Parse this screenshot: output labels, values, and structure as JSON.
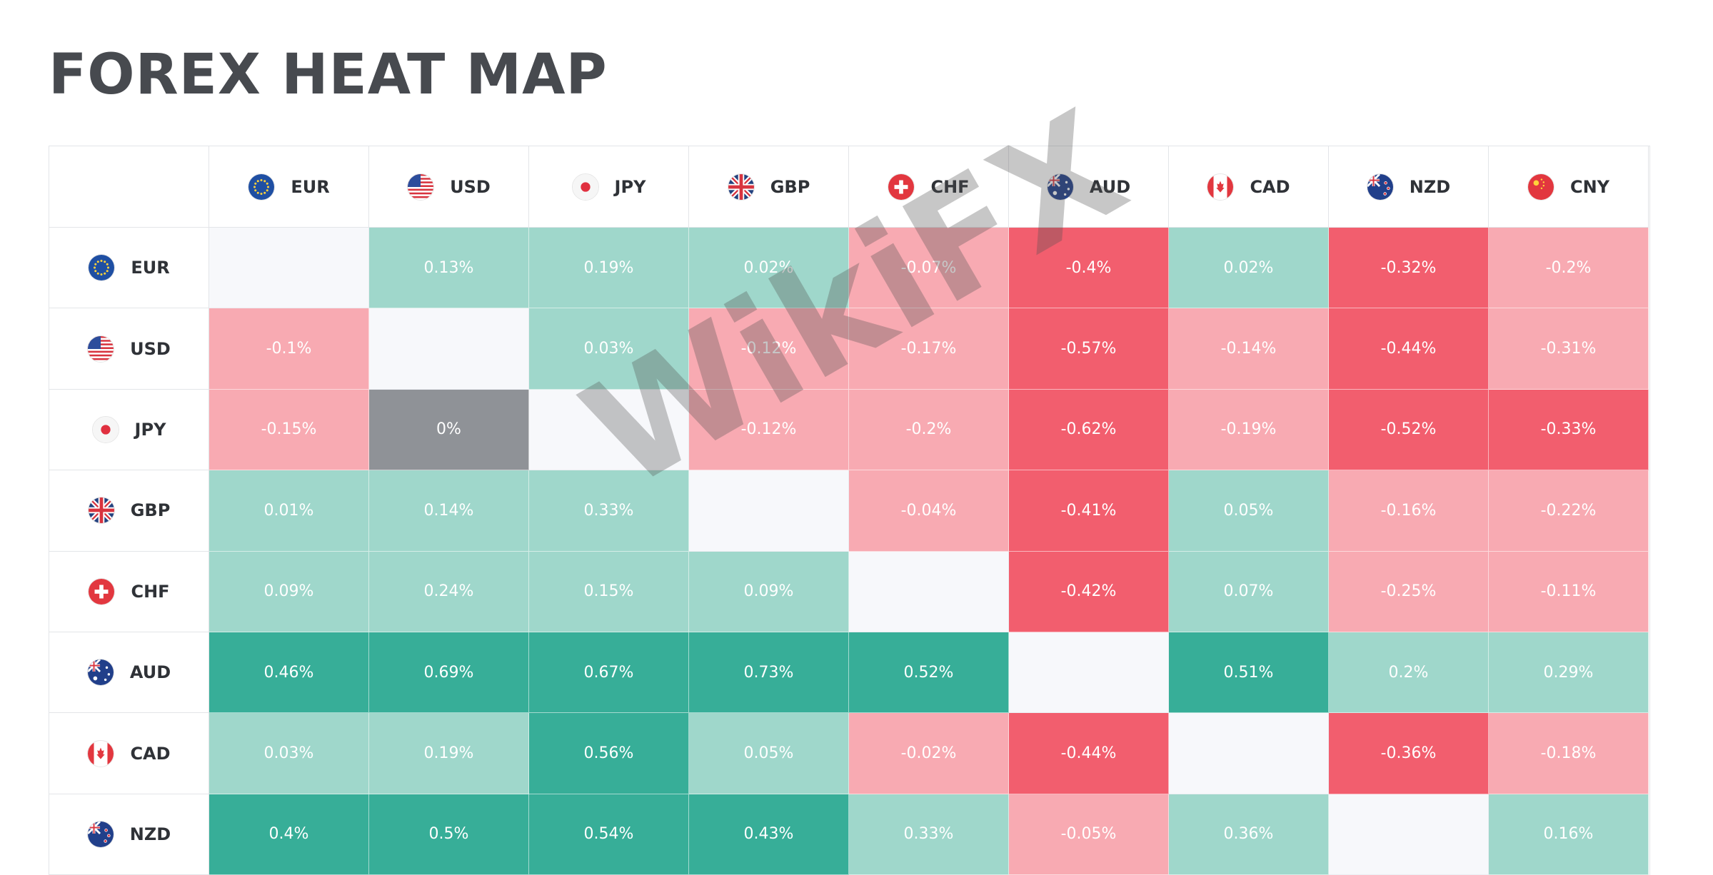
{
  "title": "FOREX HEAT MAP",
  "watermark": "WikiFX",
  "colors": {
    "strong_pos": "#37ae98",
    "weak_pos": "#9fd7cb",
    "weak_neg": "#f8aab2",
    "strong_neg": "#f25e6e",
    "neutral": "#8f9297",
    "self": "#f7f8fb"
  },
  "currencies": [
    {
      "code": "EUR",
      "flag": "eu-flag-icon"
    },
    {
      "code": "USD",
      "flag": "us-flag-icon"
    },
    {
      "code": "JPY",
      "flag": "jp-flag-icon"
    },
    {
      "code": "GBP",
      "flag": "gb-flag-icon"
    },
    {
      "code": "CHF",
      "flag": "ch-flag-icon"
    },
    {
      "code": "AUD",
      "flag": "au-flag-icon"
    },
    {
      "code": "CAD",
      "flag": "ca-flag-icon"
    },
    {
      "code": "NZD",
      "flag": "nz-flag-icon"
    },
    {
      "code": "CNY",
      "flag": "cn-flag-icon"
    }
  ],
  "rows": [
    {
      "code": "EUR",
      "cells": [
        {
          "text": "",
          "tone": "self"
        },
        {
          "text": "0.13%",
          "tone": "weak_pos"
        },
        {
          "text": "0.19%",
          "tone": "weak_pos"
        },
        {
          "text": "0.02%",
          "tone": "weak_pos"
        },
        {
          "text": "-0.07%",
          "tone": "weak_neg"
        },
        {
          "text": "-0.4%",
          "tone": "strong_neg"
        },
        {
          "text": "0.02%",
          "tone": "weak_pos"
        },
        {
          "text": "-0.32%",
          "tone": "strong_neg"
        },
        {
          "text": "-0.2%",
          "tone": "weak_neg"
        }
      ]
    },
    {
      "code": "USD",
      "cells": [
        {
          "text": "-0.1%",
          "tone": "weak_neg"
        },
        {
          "text": "",
          "tone": "self"
        },
        {
          "text": "0.03%",
          "tone": "weak_pos"
        },
        {
          "text": "-0.12%",
          "tone": "weak_neg"
        },
        {
          "text": "-0.17%",
          "tone": "weak_neg"
        },
        {
          "text": "-0.57%",
          "tone": "strong_neg"
        },
        {
          "text": "-0.14%",
          "tone": "weak_neg"
        },
        {
          "text": "-0.44%",
          "tone": "strong_neg"
        },
        {
          "text": "-0.31%",
          "tone": "weak_neg"
        }
      ]
    },
    {
      "code": "JPY",
      "cells": [
        {
          "text": "-0.15%",
          "tone": "weak_neg"
        },
        {
          "text": "0%",
          "tone": "neutral"
        },
        {
          "text": "",
          "tone": "self"
        },
        {
          "text": "-0.12%",
          "tone": "weak_neg"
        },
        {
          "text": "-0.2%",
          "tone": "weak_neg"
        },
        {
          "text": "-0.62%",
          "tone": "strong_neg"
        },
        {
          "text": "-0.19%",
          "tone": "weak_neg"
        },
        {
          "text": "-0.52%",
          "tone": "strong_neg"
        },
        {
          "text": "-0.33%",
          "tone": "strong_neg"
        }
      ]
    },
    {
      "code": "GBP",
      "cells": [
        {
          "text": "0.01%",
          "tone": "weak_pos"
        },
        {
          "text": "0.14%",
          "tone": "weak_pos"
        },
        {
          "text": "0.33%",
          "tone": "weak_pos"
        },
        {
          "text": "",
          "tone": "self"
        },
        {
          "text": "-0.04%",
          "tone": "weak_neg"
        },
        {
          "text": "-0.41%",
          "tone": "strong_neg"
        },
        {
          "text": "0.05%",
          "tone": "weak_pos"
        },
        {
          "text": "-0.16%",
          "tone": "weak_neg"
        },
        {
          "text": "-0.22%",
          "tone": "weak_neg"
        }
      ]
    },
    {
      "code": "CHF",
      "cells": [
        {
          "text": "0.09%",
          "tone": "weak_pos"
        },
        {
          "text": "0.24%",
          "tone": "weak_pos"
        },
        {
          "text": "0.15%",
          "tone": "weak_pos"
        },
        {
          "text": "0.09%",
          "tone": "weak_pos"
        },
        {
          "text": "",
          "tone": "self"
        },
        {
          "text": "-0.42%",
          "tone": "strong_neg"
        },
        {
          "text": "0.07%",
          "tone": "weak_pos"
        },
        {
          "text": "-0.25%",
          "tone": "weak_neg"
        },
        {
          "text": "-0.11%",
          "tone": "weak_neg"
        }
      ]
    },
    {
      "code": "AUD",
      "cells": [
        {
          "text": "0.46%",
          "tone": "strong_pos"
        },
        {
          "text": "0.69%",
          "tone": "strong_pos"
        },
        {
          "text": "0.67%",
          "tone": "strong_pos"
        },
        {
          "text": "0.73%",
          "tone": "strong_pos"
        },
        {
          "text": "0.52%",
          "tone": "strong_pos"
        },
        {
          "text": "",
          "tone": "self"
        },
        {
          "text": "0.51%",
          "tone": "strong_pos"
        },
        {
          "text": "0.2%",
          "tone": "weak_pos"
        },
        {
          "text": "0.29%",
          "tone": "weak_pos"
        }
      ]
    },
    {
      "code": "CAD",
      "cells": [
        {
          "text": "0.03%",
          "tone": "weak_pos"
        },
        {
          "text": "0.19%",
          "tone": "weak_pos"
        },
        {
          "text": "0.56%",
          "tone": "strong_pos"
        },
        {
          "text": "0.05%",
          "tone": "weak_pos"
        },
        {
          "text": "-0.02%",
          "tone": "weak_neg"
        },
        {
          "text": "-0.44%",
          "tone": "strong_neg"
        },
        {
          "text": "",
          "tone": "self"
        },
        {
          "text": "-0.36%",
          "tone": "strong_neg"
        },
        {
          "text": "-0.18%",
          "tone": "weak_neg"
        }
      ]
    },
    {
      "code": "NZD",
      "cells": [
        {
          "text": "0.4%",
          "tone": "strong_pos"
        },
        {
          "text": "0.5%",
          "tone": "strong_pos"
        },
        {
          "text": "0.54%",
          "tone": "strong_pos"
        },
        {
          "text": "0.43%",
          "tone": "strong_pos"
        },
        {
          "text": "0.33%",
          "tone": "weak_pos"
        },
        {
          "text": "-0.05%",
          "tone": "weak_neg"
        },
        {
          "text": "0.36%",
          "tone": "weak_pos"
        },
        {
          "text": "",
          "tone": "self"
        },
        {
          "text": "0.16%",
          "tone": "weak_pos"
        }
      ]
    }
  ]
}
